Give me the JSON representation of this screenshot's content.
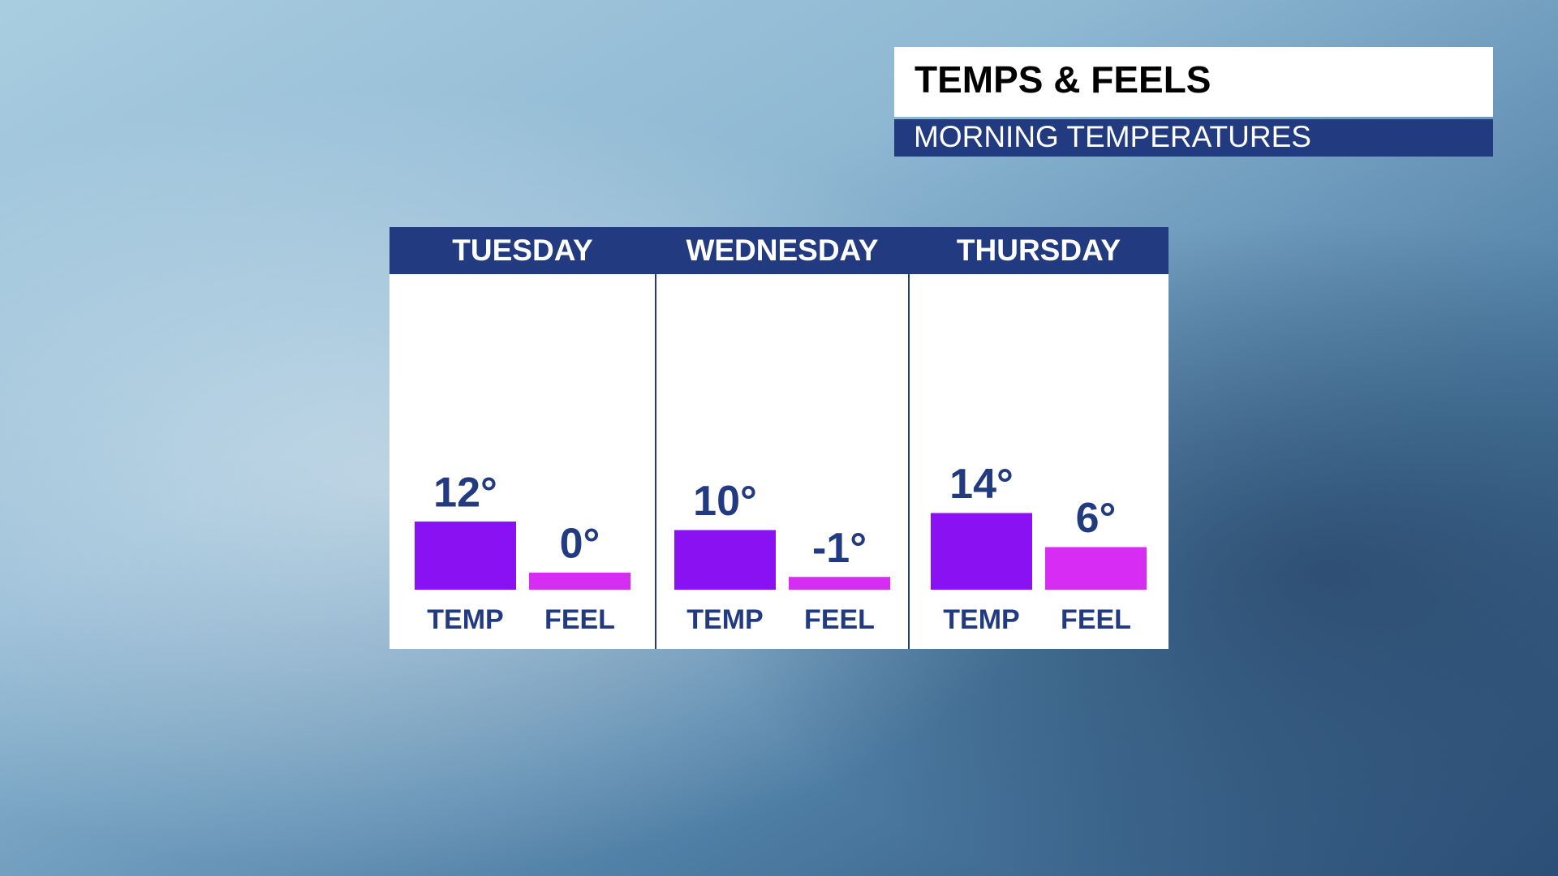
{
  "chart_data": {
    "type": "bar",
    "title": "TEMPS & FEELS",
    "subtitle": "MORNING TEMPERATURES",
    "categories": [
      "TUESDAY",
      "WEDNESDAY",
      "THURSDAY"
    ],
    "series": [
      {
        "name": "TEMP",
        "color": "#8a12f2",
        "values": [
          12,
          10,
          14
        ],
        "value_labels": [
          "12°",
          "10°",
          "14°"
        ]
      },
      {
        "name": "FEEL",
        "color": "#d62cf4",
        "values": [
          0,
          -1,
          6
        ],
        "value_labels": [
          "0°",
          "-1°",
          "6°"
        ]
      }
    ],
    "ylim": [
      -4,
      16
    ]
  }
}
